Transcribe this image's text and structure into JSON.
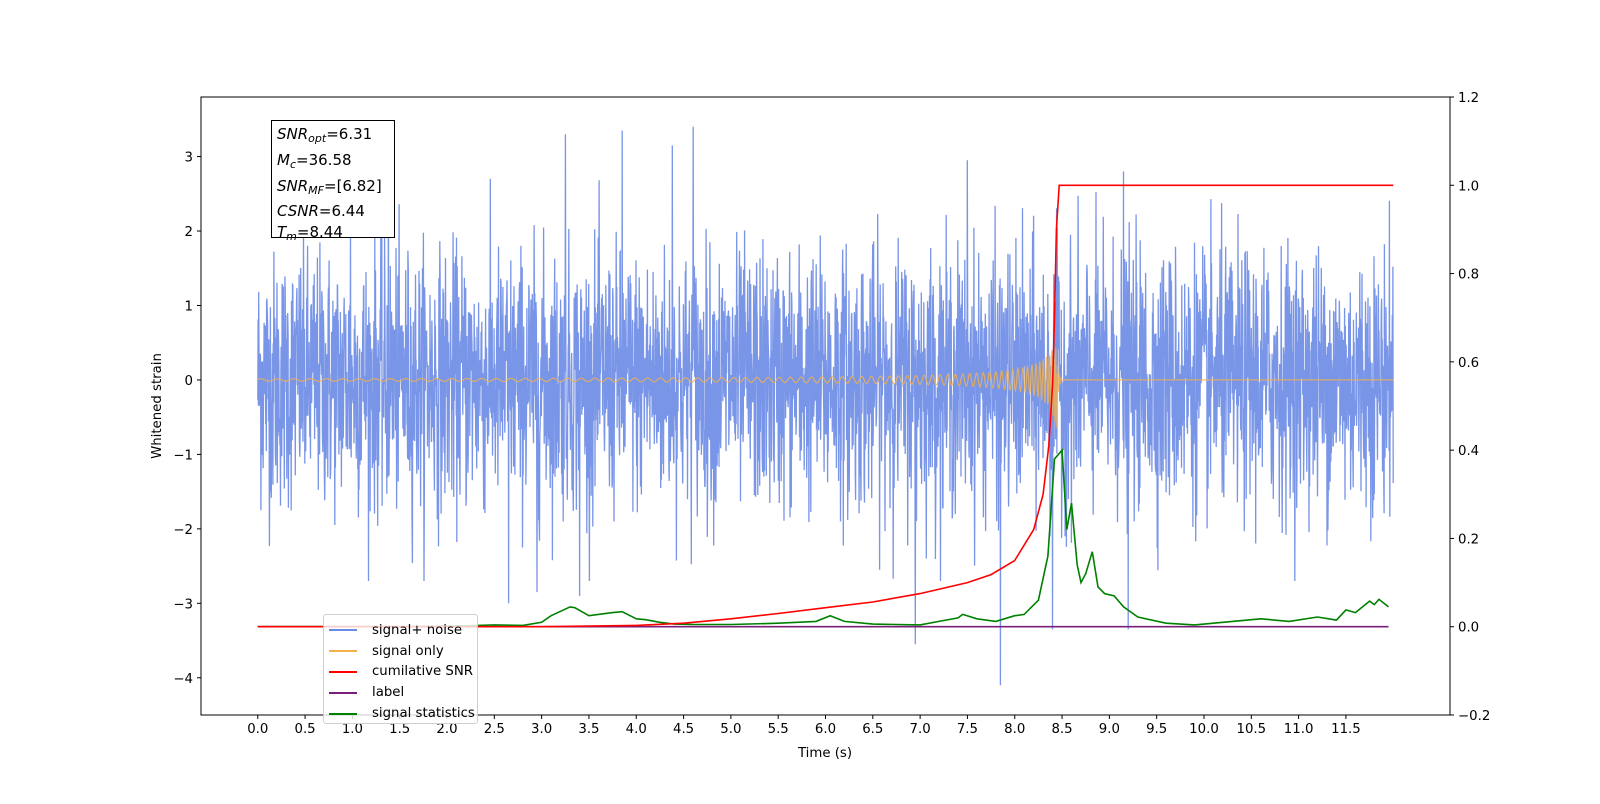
{
  "chart_data": {
    "type": "line",
    "xlabel": "Time (s)",
    "ylabel": "Whitened strain",
    "xlim": [
      -0.6,
      12.6
    ],
    "ylim": [
      -4.5,
      3.8
    ],
    "y2lim": [
      -0.2,
      1.2
    ],
    "x_ticks": [
      0.0,
      0.5,
      1.0,
      1.5,
      2.0,
      2.5,
      3.0,
      3.5,
      4.0,
      4.5,
      5.0,
      5.5,
      6.0,
      6.5,
      7.0,
      7.5,
      8.0,
      8.5,
      9.0,
      9.5,
      10.0,
      10.5,
      11.0,
      11.5
    ],
    "x_tick_labels": [
      "0.0",
      "0.5",
      "1.0",
      "1.5",
      "2.0",
      "2.5",
      "3.0",
      "3.5",
      "4.0",
      "4.5",
      "5.0",
      "5.5",
      "6.0",
      "6.5",
      "7.0",
      "7.5",
      "8.0",
      "8.5",
      "9.0",
      "9.5",
      "10.0",
      "10.5",
      "11.0",
      "11.5"
    ],
    "y_ticks": [
      -4,
      -3,
      -2,
      -1,
      0,
      1,
      2,
      3
    ],
    "y_tick_labels": [
      "−4",
      "−3",
      "−2",
      "−1",
      "0",
      "1",
      "2",
      "3"
    ],
    "y2_ticks": [
      -0.2,
      0.0,
      0.2,
      0.4,
      0.6,
      0.8,
      1.0,
      1.2
    ],
    "y2_tick_labels": [
      "−0.2",
      "0.0",
      "0.2",
      "0.4",
      "0.6",
      "0.8",
      "1.0",
      "1.2"
    ],
    "grid": false,
    "legend_position": "lower-left",
    "series": [
      {
        "name": "signal+ noise",
        "axis": "left",
        "color": "#6a8ae4",
        "description_kind": "noise",
        "time_range": [
          0.0,
          12.0
        ],
        "band_envelope_typical": [
          -1.5,
          1.5
        ],
        "spikes": [
          {
            "x": 0.98,
            "y": 2.1
          },
          {
            "x": 1.38,
            "y": 2.9
          },
          {
            "x": 3.25,
            "y": 3.3
          },
          {
            "x": 3.85,
            "y": 3.35
          },
          {
            "x": 4.38,
            "y": 3.15
          },
          {
            "x": 4.6,
            "y": 3.4
          },
          {
            "x": 7.5,
            "y": 2.95
          },
          {
            "x": 8.4,
            "y": 2.95
          },
          {
            "x": 9.15,
            "y": 2.8
          },
          {
            "x": 2.65,
            "y": -3.0
          },
          {
            "x": 2.95,
            "y": -2.85
          },
          {
            "x": 6.95,
            "y": -3.55
          },
          {
            "x": 7.85,
            "y": -4.1
          },
          {
            "x": 8.4,
            "y": -3.35
          },
          {
            "x": 9.2,
            "y": -3.35
          },
          {
            "x": 3.4,
            "y": -2.9
          }
        ]
      },
      {
        "name": "signal only",
        "axis": "left",
        "color": "#f5b24c",
        "chirp_merger_time": 8.44,
        "chirp_peak_amplitude": 0.65
      },
      {
        "name": "cumilative SNR",
        "axis": "right",
        "color": "#ff0000",
        "x": [
          0.0,
          1.0,
          2.0,
          3.0,
          4.0,
          4.5,
          5.0,
          5.5,
          6.0,
          6.5,
          7.0,
          7.5,
          7.75,
          8.0,
          8.2,
          8.3,
          8.36,
          8.4,
          8.42,
          8.44,
          8.47,
          12.0
        ],
        "values": [
          0.0,
          0.0,
          0.0,
          0.0,
          0.003,
          0.008,
          0.018,
          0.03,
          0.043,
          0.056,
          0.075,
          0.1,
          0.118,
          0.15,
          0.22,
          0.3,
          0.41,
          0.55,
          0.7,
          0.9,
          1.0,
          1.0
        ]
      },
      {
        "name": "label",
        "axis": "right",
        "color": "#7b1f7a",
        "x": [
          0.0,
          11.95
        ],
        "values": [
          0.0,
          0.0
        ]
      },
      {
        "name": "signal statistics",
        "axis": "right",
        "color": "#008000",
        "x": [
          0.0,
          0.8,
          1.6,
          2.2,
          2.5,
          2.8,
          3.0,
          3.1,
          3.2,
          3.3,
          3.35,
          3.5,
          3.75,
          3.85,
          4.0,
          4.1,
          4.25,
          4.4,
          4.6,
          5.0,
          5.5,
          5.9,
          6.05,
          6.2,
          6.5,
          7.0,
          7.2,
          7.4,
          7.45,
          7.6,
          7.8,
          8.0,
          8.1,
          8.25,
          8.35,
          8.42,
          8.5,
          8.55,
          8.6,
          8.66,
          8.7,
          8.75,
          8.82,
          8.88,
          8.95,
          9.05,
          9.15,
          9.3,
          9.6,
          9.9,
          10.3,
          10.6,
          10.9,
          11.2,
          11.4,
          11.5,
          11.6,
          11.75,
          11.8,
          11.85,
          11.95
        ],
        "values": [
          0.0,
          0.0,
          0.0,
          0.002,
          0.004,
          0.003,
          0.01,
          0.025,
          0.035,
          0.045,
          0.043,
          0.025,
          0.032,
          0.034,
          0.018,
          0.016,
          0.01,
          0.006,
          0.005,
          0.005,
          0.008,
          0.012,
          0.025,
          0.012,
          0.006,
          0.004,
          0.012,
          0.02,
          0.028,
          0.018,
          0.012,
          0.025,
          0.028,
          0.06,
          0.16,
          0.38,
          0.4,
          0.22,
          0.28,
          0.14,
          0.1,
          0.12,
          0.17,
          0.09,
          0.075,
          0.07,
          0.045,
          0.022,
          0.008,
          0.004,
          0.012,
          0.018,
          0.012,
          0.022,
          0.015,
          0.038,
          0.032,
          0.058,
          0.05,
          0.062,
          0.045
        ]
      }
    ],
    "annotations": {
      "snr_opt": {
        "main": "SNR",
        "sub": "opt",
        "value": "=6.31"
      },
      "mc": {
        "main": "M",
        "sub": "c",
        "value": "=36.58"
      },
      "snr_mf": {
        "main": "SNR",
        "sub": "MF",
        "value": "=[6.82]"
      },
      "csnr": {
        "main": "CSNR",
        "value": "=6.44"
      },
      "tm": {
        "main": "T",
        "sub": "m",
        "value": "=8.44"
      }
    }
  }
}
